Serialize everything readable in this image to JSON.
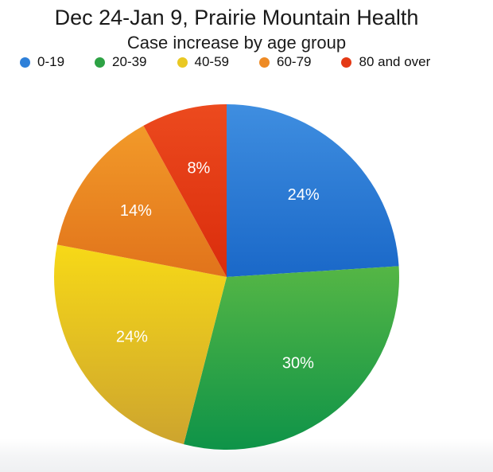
{
  "header": {
    "title": "Dec 24-Jan 9, Prairie Mountain Health",
    "subtitle": "Case increase by age group"
  },
  "chart_data": {
    "type": "pie",
    "title": "Dec 24-Jan 9, Prairie Mountain Health",
    "subtitle": "Case increase by age group",
    "legend_position": "top",
    "start_angle_deg": 0,
    "direction": "clockwise",
    "categories": [
      "0-19",
      "20-39",
      "40-59",
      "60-79",
      "80 and over"
    ],
    "values": [
      24,
      30,
      24,
      14,
      8
    ],
    "slices": [
      {
        "label": "0-19",
        "value_pct": 24,
        "data_label": "24%",
        "color": "#2e80d9",
        "color_light": "#3f8ee0",
        "color_dark": "#1a68c8"
      },
      {
        "label": "20-39",
        "value_pct": 30,
        "data_label": "30%",
        "color": "#2da244",
        "color_light": "#55b645",
        "color_dark": "#0e9348"
      },
      {
        "label": "40-59",
        "value_pct": 24,
        "data_label": "24%",
        "color": "#e9c823",
        "color_light": "#f7d917",
        "color_dark": "#cda42e"
      },
      {
        "label": "60-79",
        "value_pct": 14,
        "data_label": "14%",
        "color": "#ee8a24",
        "color_light": "#f29a29",
        "color_dark": "#e1731b"
      },
      {
        "label": "80 and over",
        "value_pct": 8,
        "data_label": "8%",
        "color": "#e43915",
        "color_light": "#ec4a1e",
        "color_dark": "#da2c0c"
      }
    ]
  }
}
